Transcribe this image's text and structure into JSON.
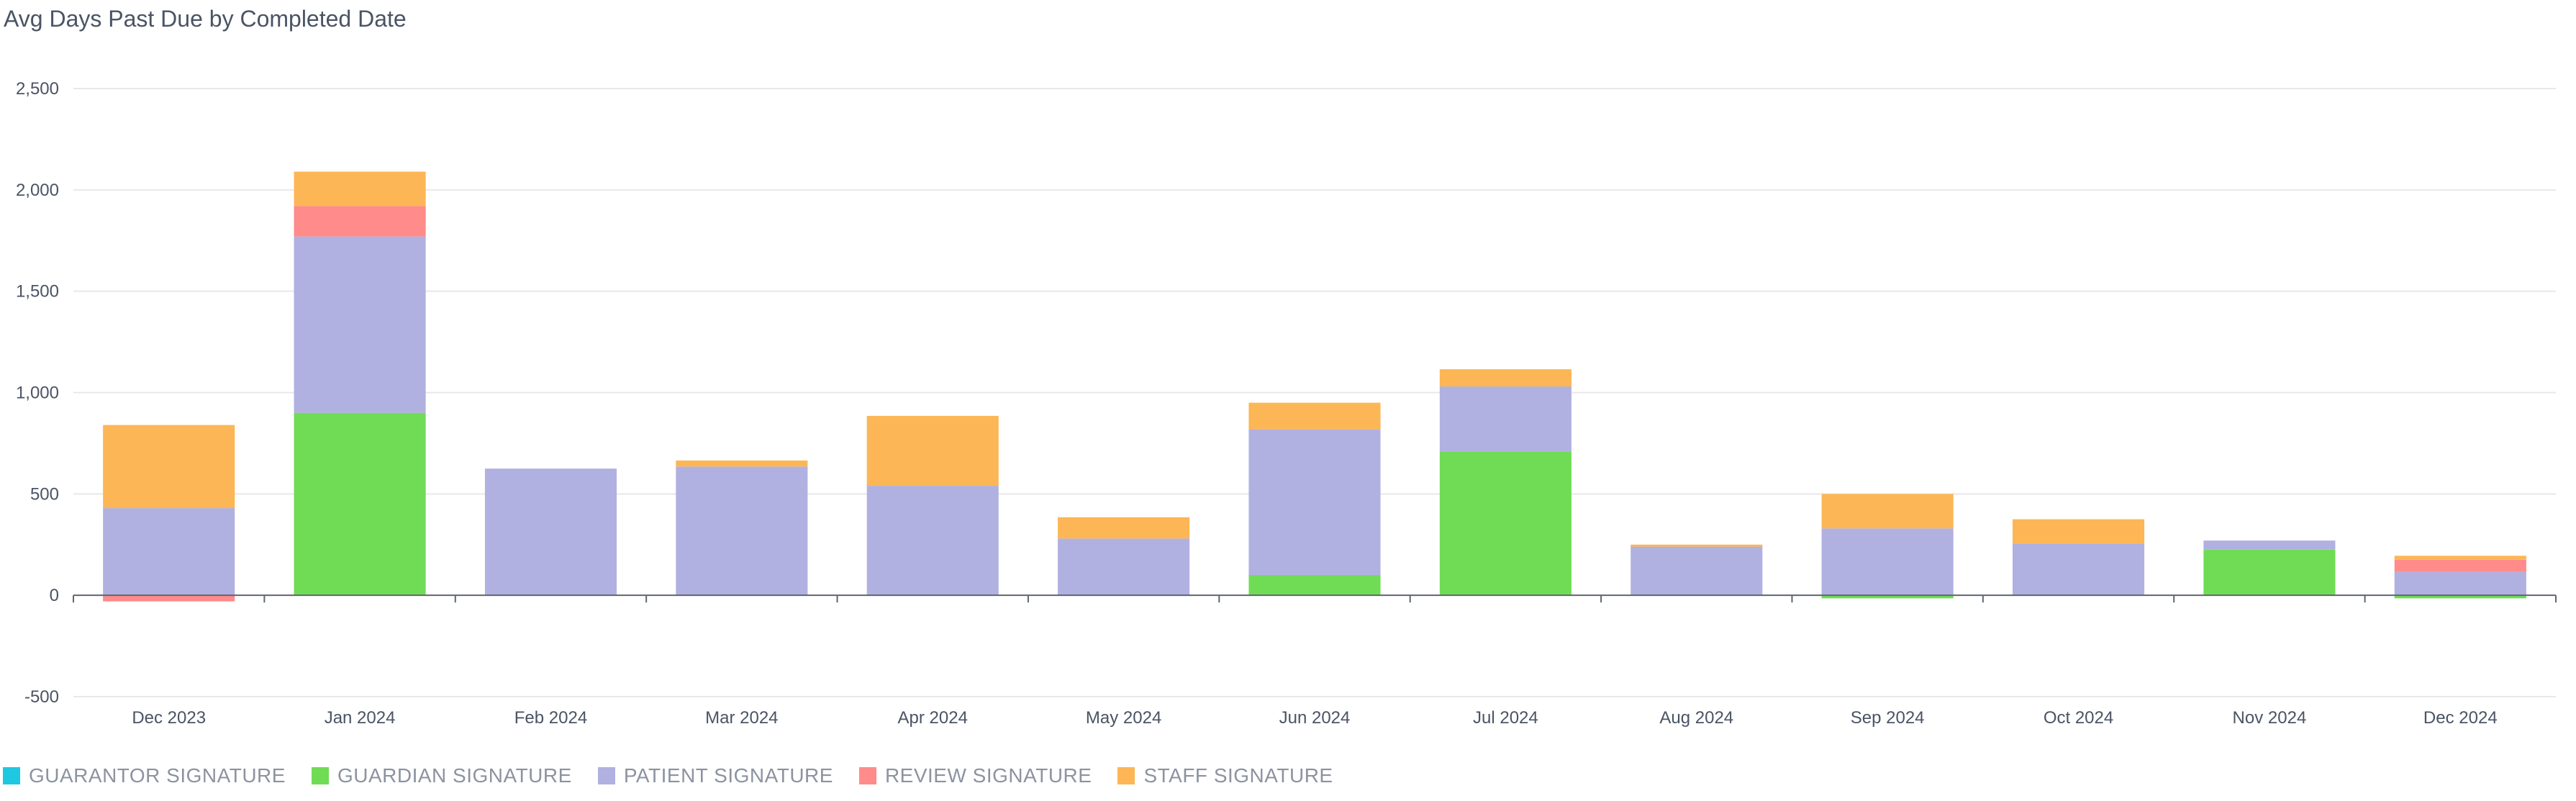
{
  "chart_data": {
    "type": "bar",
    "stacked": true,
    "title": "Avg Days Past Due by Completed Date",
    "xlabel": "",
    "ylabel": "",
    "ylim": [
      -500,
      2500
    ],
    "yticks": [
      -500,
      0,
      500,
      1000,
      1500,
      2000,
      2500
    ],
    "ytick_labels": [
      "-500",
      "0",
      "500",
      "1,000",
      "1,500",
      "2,000",
      "2,500"
    ],
    "grid": true,
    "legend_position": "bottom-left",
    "categories": [
      "Dec 2023",
      "Jan 2024",
      "Feb 2024",
      "Mar 2024",
      "Apr 2024",
      "May 2024",
      "Jun 2024",
      "Jul 2024",
      "Aug 2024",
      "Sep 2024",
      "Oct 2024",
      "Nov 2024",
      "Dec 2024"
    ],
    "series": [
      {
        "name": "GUARANTOR SIGNATURE",
        "color": "#1ec8e0",
        "values": [
          0,
          0,
          0,
          0,
          0,
          0,
          0,
          0,
          0,
          0,
          0,
          0,
          0
        ]
      },
      {
        "name": "GUARDIAN SIGNATURE",
        "color": "#70dc55",
        "values": [
          0,
          900,
          0,
          0,
          0,
          0,
          100,
          710,
          0,
          -15,
          0,
          225,
          -15
        ]
      },
      {
        "name": "PATIENT SIGNATURE",
        "color": "#b0b1e0",
        "values": [
          430,
          870,
          625,
          635,
          540,
          280,
          720,
          320,
          240,
          330,
          255,
          45,
          115
        ]
      },
      {
        "name": "REVIEW SIGNATURE",
        "color": "#ff8b8b",
        "values": [
          -30,
          150,
          0,
          0,
          0,
          0,
          0,
          0,
          0,
          0,
          0,
          0,
          60
        ]
      },
      {
        "name": "STAFF SIGNATURE",
        "color": "#fcb655",
        "values": [
          410,
          170,
          0,
          30,
          345,
          105,
          130,
          85,
          10,
          170,
          120,
          0,
          20
        ]
      }
    ]
  }
}
